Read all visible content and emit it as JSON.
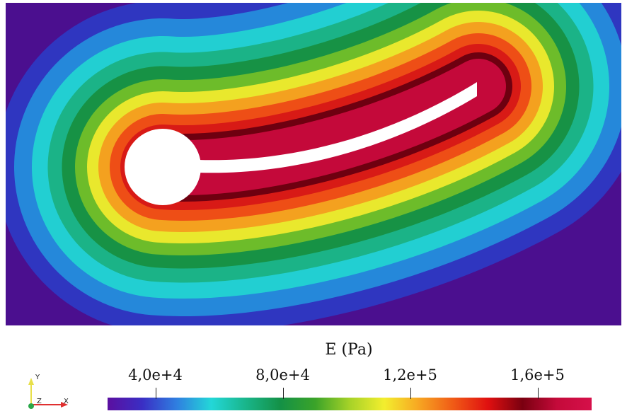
{
  "colorbar": {
    "title": "E (Pa)",
    "ticks": [
      {
        "label": "4,0e+4",
        "value": 40000
      },
      {
        "label": "8,0e+4",
        "value": 80000
      },
      {
        "label": "1,2e+5",
        "value": 120000
      },
      {
        "label": "1,6e+5",
        "value": 160000
      }
    ],
    "range": [
      25000,
      177000
    ],
    "stops": [
      "#5b0fa0",
      "#3a2ec4",
      "#2f7fe0",
      "#23d7d8",
      "#19b58a",
      "#149146",
      "#3aa329",
      "#a6d228",
      "#f3ee2e",
      "#f7a622",
      "#f05a16",
      "#e01010",
      "#7a0010",
      "#c40a3a",
      "#d6104a"
    ]
  },
  "axes_triad": {
    "y_label": "Y",
    "z_label": "Z",
    "x_label": "X",
    "y_color": "#e8e04a",
    "x_color": "#e03030",
    "z_color": "#2aa84a"
  },
  "field_colors": {
    "background": "#4b0f8f",
    "bands": [
      "#2f36c0",
      "#2588da",
      "#22cfd2",
      "#1bb387",
      "#179245",
      "#6dbc2a",
      "#e9e82d",
      "#f4a11f",
      "#ee4e16",
      "#d81a16",
      "#6e0010",
      "#c4093a"
    ]
  }
}
